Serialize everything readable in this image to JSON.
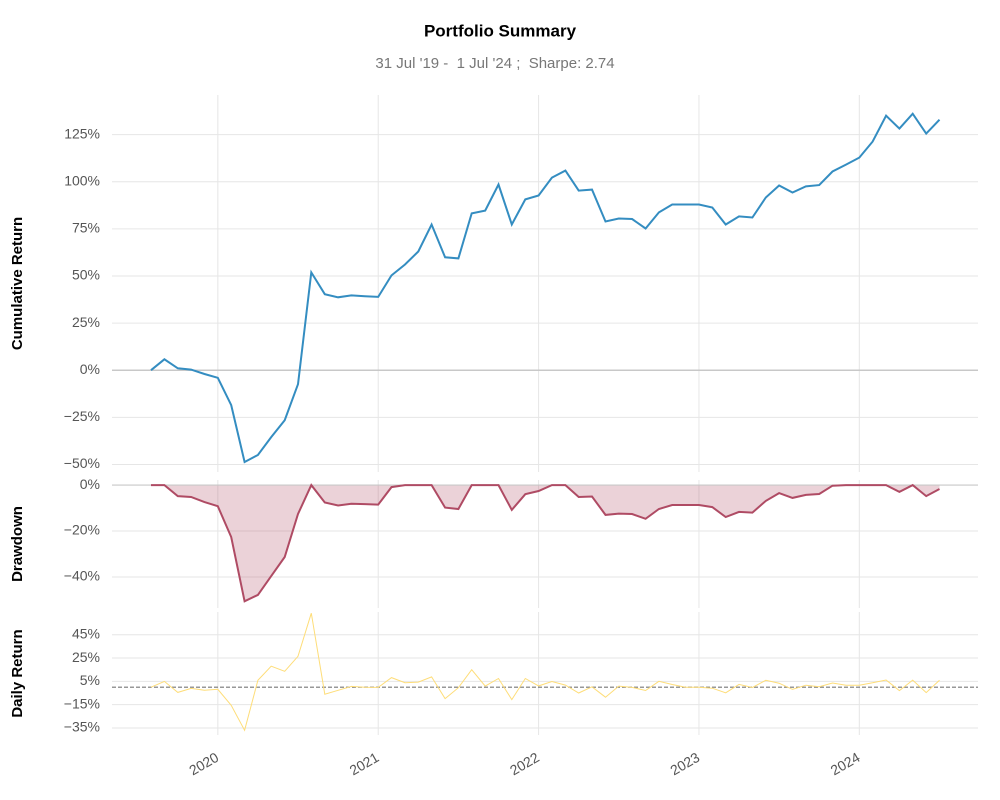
{
  "chart_data": [
    {
      "type": "line",
      "title": "Portfolio Summary",
      "subtitle": "31 Jul '19 -  1 Jul '24 ;  Sharpe: 2.74",
      "ylabel": "Cumulative Return",
      "color": "#348dc1",
      "grid": true,
      "x": [
        2019.583,
        2019.667,
        2019.75,
        2019.833,
        2019.917,
        2020.0,
        2020.083,
        2020.167,
        2020.25,
        2020.333,
        2020.417,
        2020.5,
        2020.583,
        2020.667,
        2020.75,
        2020.833,
        2020.917,
        2021.0,
        2021.083,
        2021.167,
        2021.25,
        2021.333,
        2021.417,
        2021.5,
        2021.583,
        2021.667,
        2021.75,
        2021.833,
        2021.917,
        2022.0,
        2022.083,
        2022.167,
        2022.25,
        2022.333,
        2022.417,
        2022.5,
        2022.583,
        2022.667,
        2022.75,
        2022.833,
        2022.917,
        2023.0,
        2023.083,
        2023.167,
        2023.25,
        2023.333,
        2023.417,
        2023.5,
        2023.583,
        2023.667,
        2023.75,
        2023.833,
        2023.917,
        2024.0,
        2024.083,
        2024.167,
        2024.25,
        2024.333,
        2024.417,
        2024.5
      ],
      "values": [
        0,
        5.8,
        1,
        0.3,
        -2,
        -4,
        -18.5,
        -48.7,
        -45,
        -35.5,
        -26.5,
        -7.4,
        51.9,
        40.3,
        38.7,
        39.7,
        39.2,
        38.9,
        50.3,
        56.1,
        63,
        77.3,
        59.9,
        59.3,
        83.2,
        84.7,
        98.5,
        77.3,
        90.6,
        92.7,
        102.2,
        105.9,
        95.3,
        95.8,
        78.9,
        80.5,
        80.2,
        75.2,
        83.7,
        87.9,
        87.9,
        87.9,
        86.3,
        77.3,
        81.6,
        81,
        91.6,
        98,
        94.3,
        97.5,
        98.2,
        105.4,
        109.1,
        112.8,
        121.3,
        135,
        128.2,
        136.1,
        125.5,
        132.9
      ],
      "xlim": [
        2019.34,
        2024.74
      ],
      "xticks": [
        2020,
        2021,
        2022,
        2023,
        2024
      ],
      "ylim": [
        -54,
        146
      ],
      "yticks": [
        {
          "value": -50,
          "label": "−50%"
        },
        {
          "value": -25,
          "label": "−25%"
        },
        {
          "value": 0,
          "label": "0%"
        },
        {
          "value": 25,
          "label": "25%"
        },
        {
          "value": 50,
          "label": "50%"
        },
        {
          "value": 75,
          "label": "75%"
        },
        {
          "value": 100,
          "label": "100%"
        },
        {
          "value": 125,
          "label": "125%"
        }
      ]
    },
    {
      "type": "area",
      "ylabel": "Drawdown",
      "color": "#af4b64",
      "grid": true,
      "x": [
        2019.583,
        2019.667,
        2019.75,
        2019.833,
        2019.917,
        2020.0,
        2020.083,
        2020.167,
        2020.25,
        2020.333,
        2020.417,
        2020.5,
        2020.583,
        2020.667,
        2020.75,
        2020.833,
        2020.917,
        2021.0,
        2021.083,
        2021.167,
        2021.25,
        2021.333,
        2021.417,
        2021.5,
        2021.583,
        2021.667,
        2021.75,
        2021.833,
        2021.917,
        2022.0,
        2022.083,
        2022.167,
        2022.25,
        2022.333,
        2022.417,
        2022.5,
        2022.583,
        2022.667,
        2022.75,
        2022.833,
        2022.917,
        2023.0,
        2023.083,
        2023.167,
        2023.25,
        2023.333,
        2023.417,
        2023.5,
        2023.583,
        2023.667,
        2023.75,
        2023.833,
        2023.917,
        2024.0,
        2024.083,
        2024.167,
        2024.25,
        2024.333,
        2024.417,
        2024.5
      ],
      "values": [
        0,
        0,
        -4.8,
        -5.2,
        -7.4,
        -9.2,
        -22.6,
        -50.6,
        -47.8,
        -39.6,
        -31.3,
        -12.6,
        0,
        -7.6,
        -8.9,
        -8.1,
        -8.3,
        -8.5,
        -0.9,
        0,
        0,
        0,
        -9.8,
        -10.4,
        0,
        0,
        0,
        -10.8,
        -4,
        -2.6,
        0,
        0,
        -5.2,
        -5,
        -13,
        -12.4,
        -12.6,
        -14.7,
        -10.4,
        -8.7,
        -8.7,
        -8.7,
        -9.6,
        -13.9,
        -11.7,
        -12,
        -6.9,
        -3.5,
        -5.6,
        -4.3,
        -3.9,
        -0.3,
        0,
        0,
        0,
        0,
        -3,
        0,
        -4.8,
        -1.7
      ],
      "xlim": [
        2019.34,
        2024.74
      ],
      "xticks": [
        2020,
        2021,
        2022,
        2023,
        2024
      ],
      "ylim": [
        -53.5,
        2.2
      ],
      "yticks": [
        {
          "value": -40,
          "label": "−40%"
        },
        {
          "value": -20,
          "label": "−20%"
        },
        {
          "value": 0,
          "label": "0%"
        }
      ]
    },
    {
      "type": "line",
      "ylabel": "Daily Return",
      "color": "#fedd78",
      "grid": true,
      "x": [
        2019.583,
        2019.667,
        2019.75,
        2019.833,
        2019.917,
        2020.0,
        2020.083,
        2020.167,
        2020.25,
        2020.333,
        2020.417,
        2020.5,
        2020.583,
        2020.667,
        2020.75,
        2020.833,
        2020.917,
        2021.0,
        2021.083,
        2021.167,
        2021.25,
        2021.333,
        2021.417,
        2021.5,
        2021.583,
        2021.667,
        2021.75,
        2021.833,
        2021.917,
        2022.0,
        2022.083,
        2022.167,
        2022.25,
        2022.333,
        2022.417,
        2022.5,
        2022.583,
        2022.667,
        2022.75,
        2022.833,
        2022.917,
        2023.0,
        2023.083,
        2023.167,
        2023.25,
        2023.333,
        2023.417,
        2023.5,
        2023.583,
        2023.667,
        2023.75,
        2023.833,
        2023.917,
        2024.0,
        2024.083,
        2024.167,
        2024.25,
        2024.333,
        2024.417,
        2024.5
      ],
      "values": [
        0,
        5,
        -4.5,
        -1,
        -2.6,
        -1.8,
        -15.5,
        -37,
        5.9,
        18,
        13.6,
        26.5,
        63.5,
        -6,
        -2.7,
        0.7,
        0,
        -0.2,
        8.2,
        3.9,
        4.4,
        8.8,
        -9.8,
        -0.4,
        15,
        0.9,
        7.5,
        -10.6,
        7.5,
        1.1,
        4.9,
        1.8,
        -5,
        0.3,
        -8.6,
        0.9,
        -0.2,
        -2.8,
        5.1,
        2.3,
        0,
        0,
        -0.9,
        -4.8,
        2.4,
        -0.3,
        5.9,
        3.4,
        -1.9,
        1.7,
        0.4,
        3.6,
        1.7,
        1.7,
        3.8,
        6.2,
        -2.9,
        6.1,
        -4.6,
        5.9
      ],
      "xlim": [
        2019.34,
        2024.74
      ],
      "xticks": [
        2020,
        2021,
        2022,
        2023,
        2024
      ],
      "ylim": [
        -41,
        64.5
      ],
      "yticks": [
        {
          "value": -35,
          "label": "−35%"
        },
        {
          "value": -15,
          "label": "−15%"
        },
        {
          "value": 5,
          "label": "5%"
        },
        {
          "value": 25,
          "label": "25%"
        },
        {
          "value": 45,
          "label": "45%"
        }
      ]
    }
  ]
}
